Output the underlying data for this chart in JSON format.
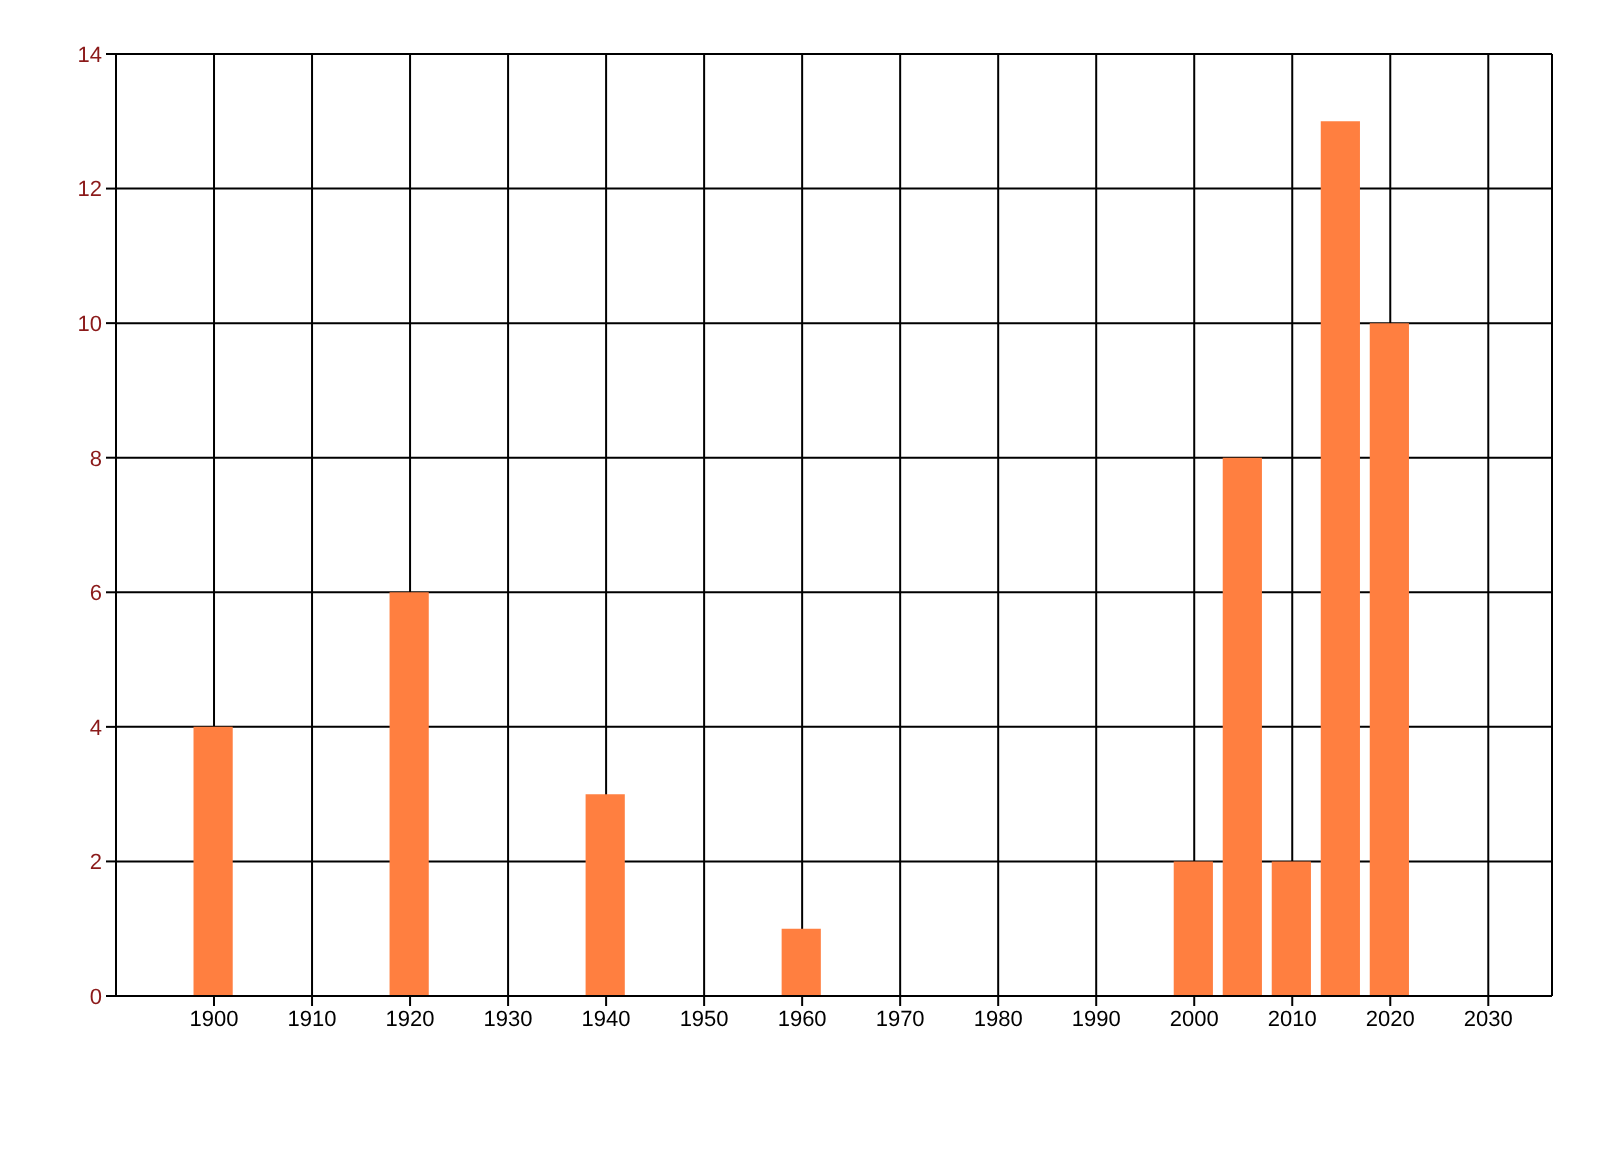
{
  "chart_data": {
    "type": "bar",
    "x": [
      1900,
      1920,
      1940,
      1960,
      2000,
      2005,
      2010,
      2015,
      2020
    ],
    "values": [
      4,
      6,
      3,
      1,
      2,
      8,
      2,
      13,
      10
    ],
    "color": "#ff7f40",
    "xlim": [
      1890,
      2036.5
    ],
    "xticks": [
      1900,
      1910,
      1920,
      1930,
      1940,
      1950,
      1960,
      1970,
      1980,
      1990,
      2000,
      2010,
      2020,
      2030
    ],
    "ylim": [
      0,
      14
    ],
    "yticks": [
      0,
      2,
      4,
      6,
      8,
      10,
      12,
      14
    ],
    "grid": true
  }
}
